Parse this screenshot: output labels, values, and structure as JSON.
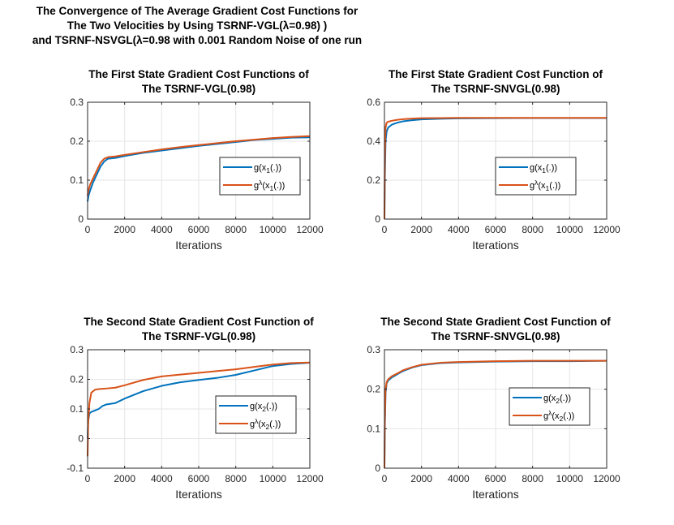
{
  "figure": {
    "suptitle": [
      "The Convergence of The Average Gradient Cost Functions for",
      "The Two Velocities by Using TSRNF-VGL(λ=0.98) )",
      "and TSRNF-NSVGL(λ=0.98 with 0.001 Random Noise of one run"
    ]
  },
  "colors": {
    "series1": "#0072BD",
    "series2": "#D95319",
    "grid": "#e6e6e6",
    "axis": "#262626"
  },
  "chart_data": [
    {
      "type": "line",
      "title": [
        "The First State Gradient Cost Functions of",
        "The TSRNF-VGL(0.98)"
      ],
      "xlabel": "Iterations",
      "ylabel": "",
      "xlim": [
        0,
        12000
      ],
      "ylim": [
        0,
        0.3
      ],
      "xticks": [
        0,
        2000,
        4000,
        6000,
        8000,
        10000,
        12000
      ],
      "yticks": [
        0,
        0.1,
        0.2,
        0.3
      ],
      "xtick_labels": [
        "0",
        "2000",
        "4000",
        "6000",
        "8000",
        "10000",
        "12000"
      ],
      "ytick_labels": [
        "0",
        "0.1",
        "0.2",
        "0.3"
      ],
      "grid": true,
      "legend_position": "center-right",
      "legend": [
        {
          "base": "g(x",
          "sub": "1",
          "tail": "(.))",
          "sup": ""
        },
        {
          "base": "g",
          "sup": "λ",
          "mid": "(x",
          "sub": "1",
          "tail": "(.))"
        }
      ],
      "series": [
        {
          "x": [
            0,
            50,
            150,
            300,
            500,
            700,
            900,
            1100,
            1500,
            2000,
            3000,
            4000,
            5000,
            6000,
            7000,
            8000,
            9000,
            10000,
            11000,
            12000
          ],
          "y": [
            0.045,
            0.06,
            0.075,
            0.095,
            0.115,
            0.135,
            0.148,
            0.155,
            0.157,
            0.162,
            0.17,
            0.176,
            0.182,
            0.188,
            0.193,
            0.198,
            0.203,
            0.206,
            0.209,
            0.21
          ]
        },
        {
          "x": [
            0,
            50,
            150,
            300,
            500,
            700,
            900,
            1100,
            1500,
            2000,
            3000,
            4000,
            5000,
            6000,
            7000,
            8000,
            9000,
            10000,
            11000,
            12000
          ],
          "y": [
            0.06,
            0.075,
            0.09,
            0.105,
            0.125,
            0.145,
            0.155,
            0.159,
            0.161,
            0.165,
            0.172,
            0.179,
            0.185,
            0.19,
            0.195,
            0.2,
            0.204,
            0.208,
            0.211,
            0.213
          ]
        }
      ]
    },
    {
      "type": "line",
      "title": [
        "The First State Gradient Cost Function of",
        "The TSRNF-SNVGL(0.98)"
      ],
      "xlabel": "Iterations",
      "ylabel": "",
      "xlim": [
        0,
        12000
      ],
      "ylim": [
        0,
        0.6
      ],
      "xticks": [
        0,
        2000,
        4000,
        6000,
        8000,
        10000,
        12000
      ],
      "yticks": [
        0,
        0.2,
        0.4,
        0.6
      ],
      "xtick_labels": [
        "0",
        "2000",
        "4000",
        "6000",
        "8000",
        "10000",
        "12000"
      ],
      "ytick_labels": [
        "0",
        "0.2",
        "0.4",
        "0.6"
      ],
      "grid": true,
      "legend_position": "center-right",
      "legend": [
        {
          "base": "g(x",
          "sub": "1",
          "tail": "(.))",
          "sup": ""
        },
        {
          "base": "g",
          "sup": "λ",
          "mid": "(x",
          "sub": "1",
          "tail": "(.))"
        }
      ],
      "series": [
        {
          "x": [
            0,
            20,
            60,
            120,
            200,
            400,
            700,
            1000,
            1500,
            2000,
            3000,
            4000,
            6000,
            8000,
            10000,
            12000
          ],
          "y": [
            0,
            0.2,
            0.4,
            0.45,
            0.47,
            0.485,
            0.495,
            0.502,
            0.508,
            0.512,
            0.515,
            0.517,
            0.518,
            0.519,
            0.519,
            0.519
          ]
        },
        {
          "x": [
            0,
            20,
            60,
            120,
            200,
            400,
            700,
            1000,
            1500,
            2000,
            3000,
            4000,
            6000,
            8000,
            10000,
            12000
          ],
          "y": [
            0,
            0.3,
            0.47,
            0.495,
            0.5,
            0.505,
            0.51,
            0.513,
            0.516,
            0.518,
            0.519,
            0.52,
            0.52,
            0.52,
            0.52,
            0.52
          ]
        }
      ]
    },
    {
      "type": "line",
      "title": [
        "The Second State Gradient Cost Function of",
        "The TSRNF-VGL(0.98)"
      ],
      "xlabel": "Iterations",
      "ylabel": "",
      "xlim": [
        0,
        12000
      ],
      "ylim": [
        -0.1,
        0.3
      ],
      "xticks": [
        0,
        2000,
        4000,
        6000,
        8000,
        10000,
        12000
      ],
      "yticks": [
        -0.1,
        0,
        0.1,
        0.2,
        0.3
      ],
      "xtick_labels": [
        "0",
        "2000",
        "4000",
        "6000",
        "8000",
        "10000",
        "12000"
      ],
      "ytick_labels": [
        "-0.1",
        "0",
        "0.1",
        "0.2",
        "0.3"
      ],
      "grid": true,
      "legend_position": "center-right",
      "legend": [
        {
          "base": "g(x",
          "sub": "2",
          "tail": "(.))",
          "sup": ""
        },
        {
          "base": "g",
          "sup": "λ",
          "mid": "(x",
          "sub": "2",
          "tail": "(.))"
        }
      ],
      "series": [
        {
          "x": [
            0,
            30,
            100,
            200,
            400,
            600,
            800,
            1000,
            1500,
            2000,
            3000,
            4000,
            5000,
            6000,
            7000,
            8000,
            9000,
            10000,
            11000,
            12000
          ],
          "y": [
            0.0,
            0.06,
            0.085,
            0.09,
            0.095,
            0.1,
            0.11,
            0.115,
            0.12,
            0.135,
            0.16,
            0.178,
            0.19,
            0.198,
            0.205,
            0.215,
            0.23,
            0.245,
            0.252,
            0.256
          ]
        },
        {
          "x": [
            0,
            30,
            100,
            200,
            400,
            600,
            800,
            1000,
            1500,
            2000,
            3000,
            4000,
            5000,
            6000,
            7000,
            8000,
            9000,
            10000,
            11000,
            12000
          ],
          "y": [
            -0.06,
            0.05,
            0.12,
            0.155,
            0.165,
            0.167,
            0.168,
            0.169,
            0.172,
            0.18,
            0.198,
            0.21,
            0.216,
            0.222,
            0.228,
            0.234,
            0.242,
            0.25,
            0.255,
            0.257
          ]
        }
      ]
    },
    {
      "type": "line",
      "title": [
        "The Second State Gradient Cost Function of",
        "The TSRNF-SNVGL(0.98)"
      ],
      "xlabel": "Iterations",
      "ylabel": "",
      "xlim": [
        0,
        12000
      ],
      "ylim": [
        0,
        0.3
      ],
      "xticks": [
        0,
        2000,
        4000,
        6000,
        8000,
        10000,
        12000
      ],
      "yticks": [
        0,
        0.1,
        0.2,
        0.3
      ],
      "xtick_labels": [
        "0",
        "2000",
        "4000",
        "6000",
        "8000",
        "10000",
        "12000"
      ],
      "ytick_labels": [
        "0",
        "0.1",
        "0.2",
        "0.3"
      ],
      "grid": true,
      "legend_position": "center-right",
      "legend": [
        {
          "base": "g(x",
          "sub": "2",
          "tail": "(.))",
          "sup": ""
        },
        {
          "base": "g",
          "sup": "λ",
          "mid": "(x",
          "sub": "2",
          "tail": "(.))"
        }
      ],
      "series": [
        {
          "x": [
            0,
            20,
            60,
            120,
            200,
            400,
            700,
            1000,
            1500,
            2000,
            3000,
            4000,
            6000,
            8000,
            10000,
            12000
          ],
          "y": [
            0,
            0.1,
            0.19,
            0.215,
            0.222,
            0.23,
            0.238,
            0.246,
            0.255,
            0.261,
            0.266,
            0.268,
            0.27,
            0.271,
            0.271,
            0.272
          ]
        },
        {
          "x": [
            0,
            20,
            60,
            120,
            200,
            400,
            700,
            1000,
            1500,
            2000,
            3000,
            4000,
            6000,
            8000,
            10000,
            12000
          ],
          "y": [
            0,
            0.12,
            0.2,
            0.218,
            0.225,
            0.233,
            0.24,
            0.248,
            0.256,
            0.262,
            0.267,
            0.269,
            0.271,
            0.272,
            0.272,
            0.272
          ]
        }
      ]
    }
  ]
}
